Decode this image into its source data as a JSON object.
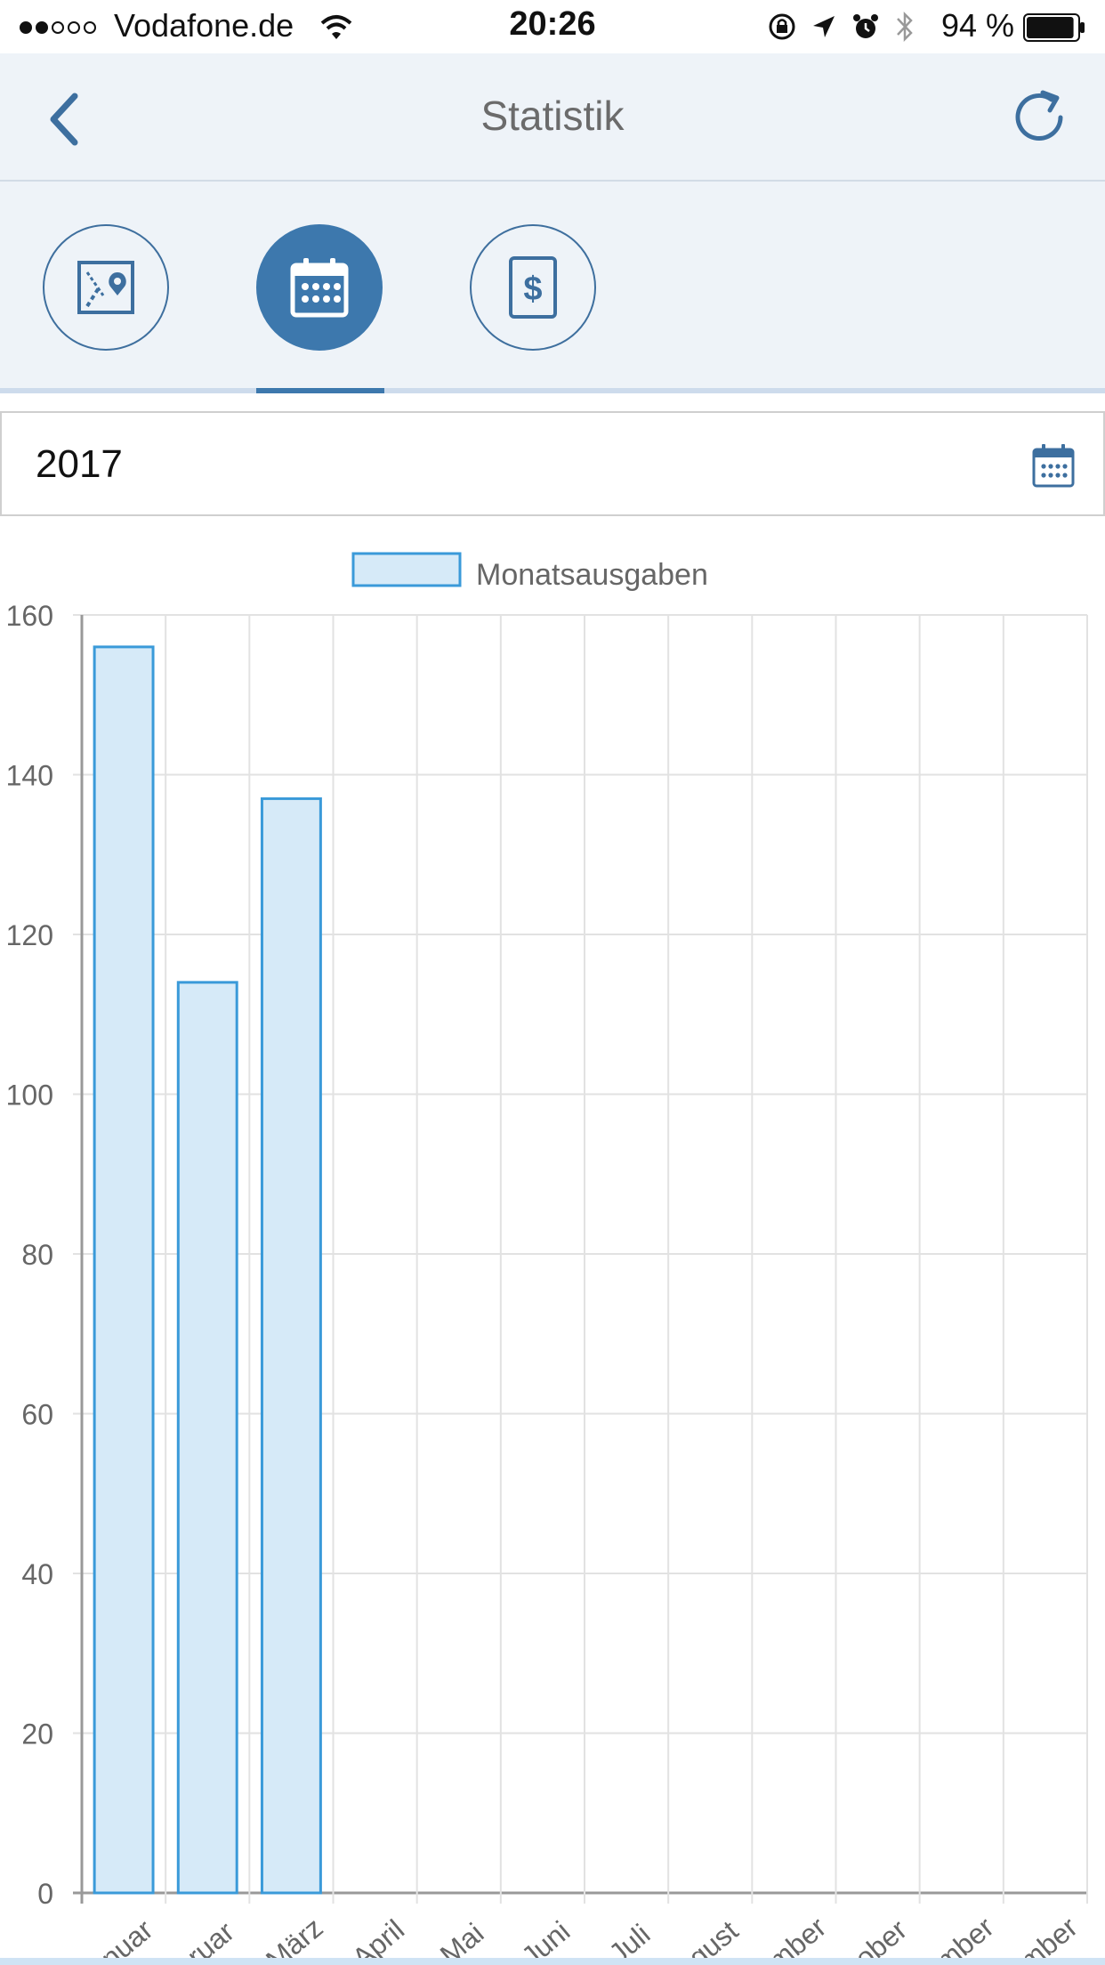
{
  "status_bar": {
    "carrier": "Vodafone.de",
    "time": "20:26",
    "battery_percent": "94 %",
    "battery_level": 0.94,
    "signal_bars": 2,
    "signal_max": 5
  },
  "nav": {
    "title": "Statistik",
    "back_icon": "chevron-left-icon",
    "refresh_icon": "refresh-icon"
  },
  "tabs": [
    {
      "icon": "map-pin-icon",
      "active": false
    },
    {
      "icon": "calendar-icon",
      "active": true
    },
    {
      "icon": "dollar-document-icon",
      "active": false
    }
  ],
  "year_field": {
    "value": "2017",
    "icon": "calendar-icon"
  },
  "colors": {
    "accent": "#3d78ad",
    "nav_background": "#eef3f8",
    "bar_fill": "#d6eaf8",
    "bar_border": "#3a9ad9"
  },
  "chart_data": {
    "type": "bar",
    "legend": [
      "Monatsausgaben"
    ],
    "legend_position": "top",
    "categories": [
      "Januar",
      "Februar",
      "März",
      "April",
      "Mai",
      "Juni",
      "Juli",
      "August",
      "September",
      "Oktober",
      "November",
      "Dezember"
    ],
    "tick_labels_visible": [
      "nuar",
      "ruar",
      "März",
      "April",
      "Mai",
      "Juni",
      "Juli",
      "gust",
      "mber",
      "ober",
      "mber",
      "mber"
    ],
    "series": [
      {
        "name": "Monatsausgaben",
        "values": [
          156,
          114,
          137,
          0,
          0,
          0,
          0,
          0,
          0,
          0,
          0,
          0
        ]
      }
    ],
    "ylim": [
      0,
      160
    ],
    "yticks": [
      0,
      20,
      40,
      60,
      80,
      100,
      120,
      140,
      160
    ],
    "grid": true
  }
}
